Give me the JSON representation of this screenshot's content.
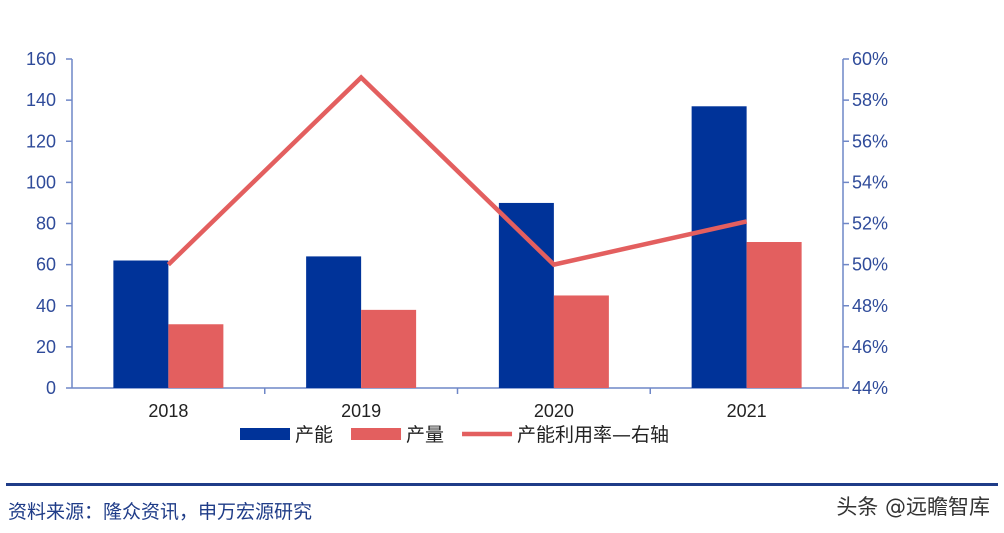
{
  "chart_data": {
    "type": "bar",
    "categories": [
      "2018",
      "2019",
      "2020",
      "2021"
    ],
    "series": [
      {
        "name": "产能",
        "kind": "bar",
        "axis": "left",
        "values": [
          62,
          64,
          90,
          137
        ],
        "color": "#003399"
      },
      {
        "name": "产量",
        "kind": "bar",
        "axis": "left",
        "values": [
          31,
          38,
          45,
          71
        ],
        "color": "#e35f5f"
      },
      {
        "name": "产能利用率—右轴",
        "kind": "line",
        "axis": "right",
        "values": [
          50.0,
          59.1,
          50.0,
          52.1
        ],
        "color": "#e35f5f"
      }
    ],
    "y_left": {
      "min": 0,
      "max": 160,
      "step": 20,
      "ticks": [
        "0",
        "20",
        "40",
        "60",
        "80",
        "100",
        "120",
        "140",
        "160"
      ]
    },
    "y_right": {
      "min": 44,
      "max": 60,
      "step": 2,
      "ticks": [
        "44%",
        "46%",
        "48%",
        "50%",
        "52%",
        "54%",
        "56%",
        "58%",
        "60%"
      ]
    },
    "legend": {
      "position": "bottom"
    }
  },
  "footer": {
    "source": "资料来源：隆众资讯，申万宏源研究",
    "watermark": "头条 @远瞻智库"
  }
}
